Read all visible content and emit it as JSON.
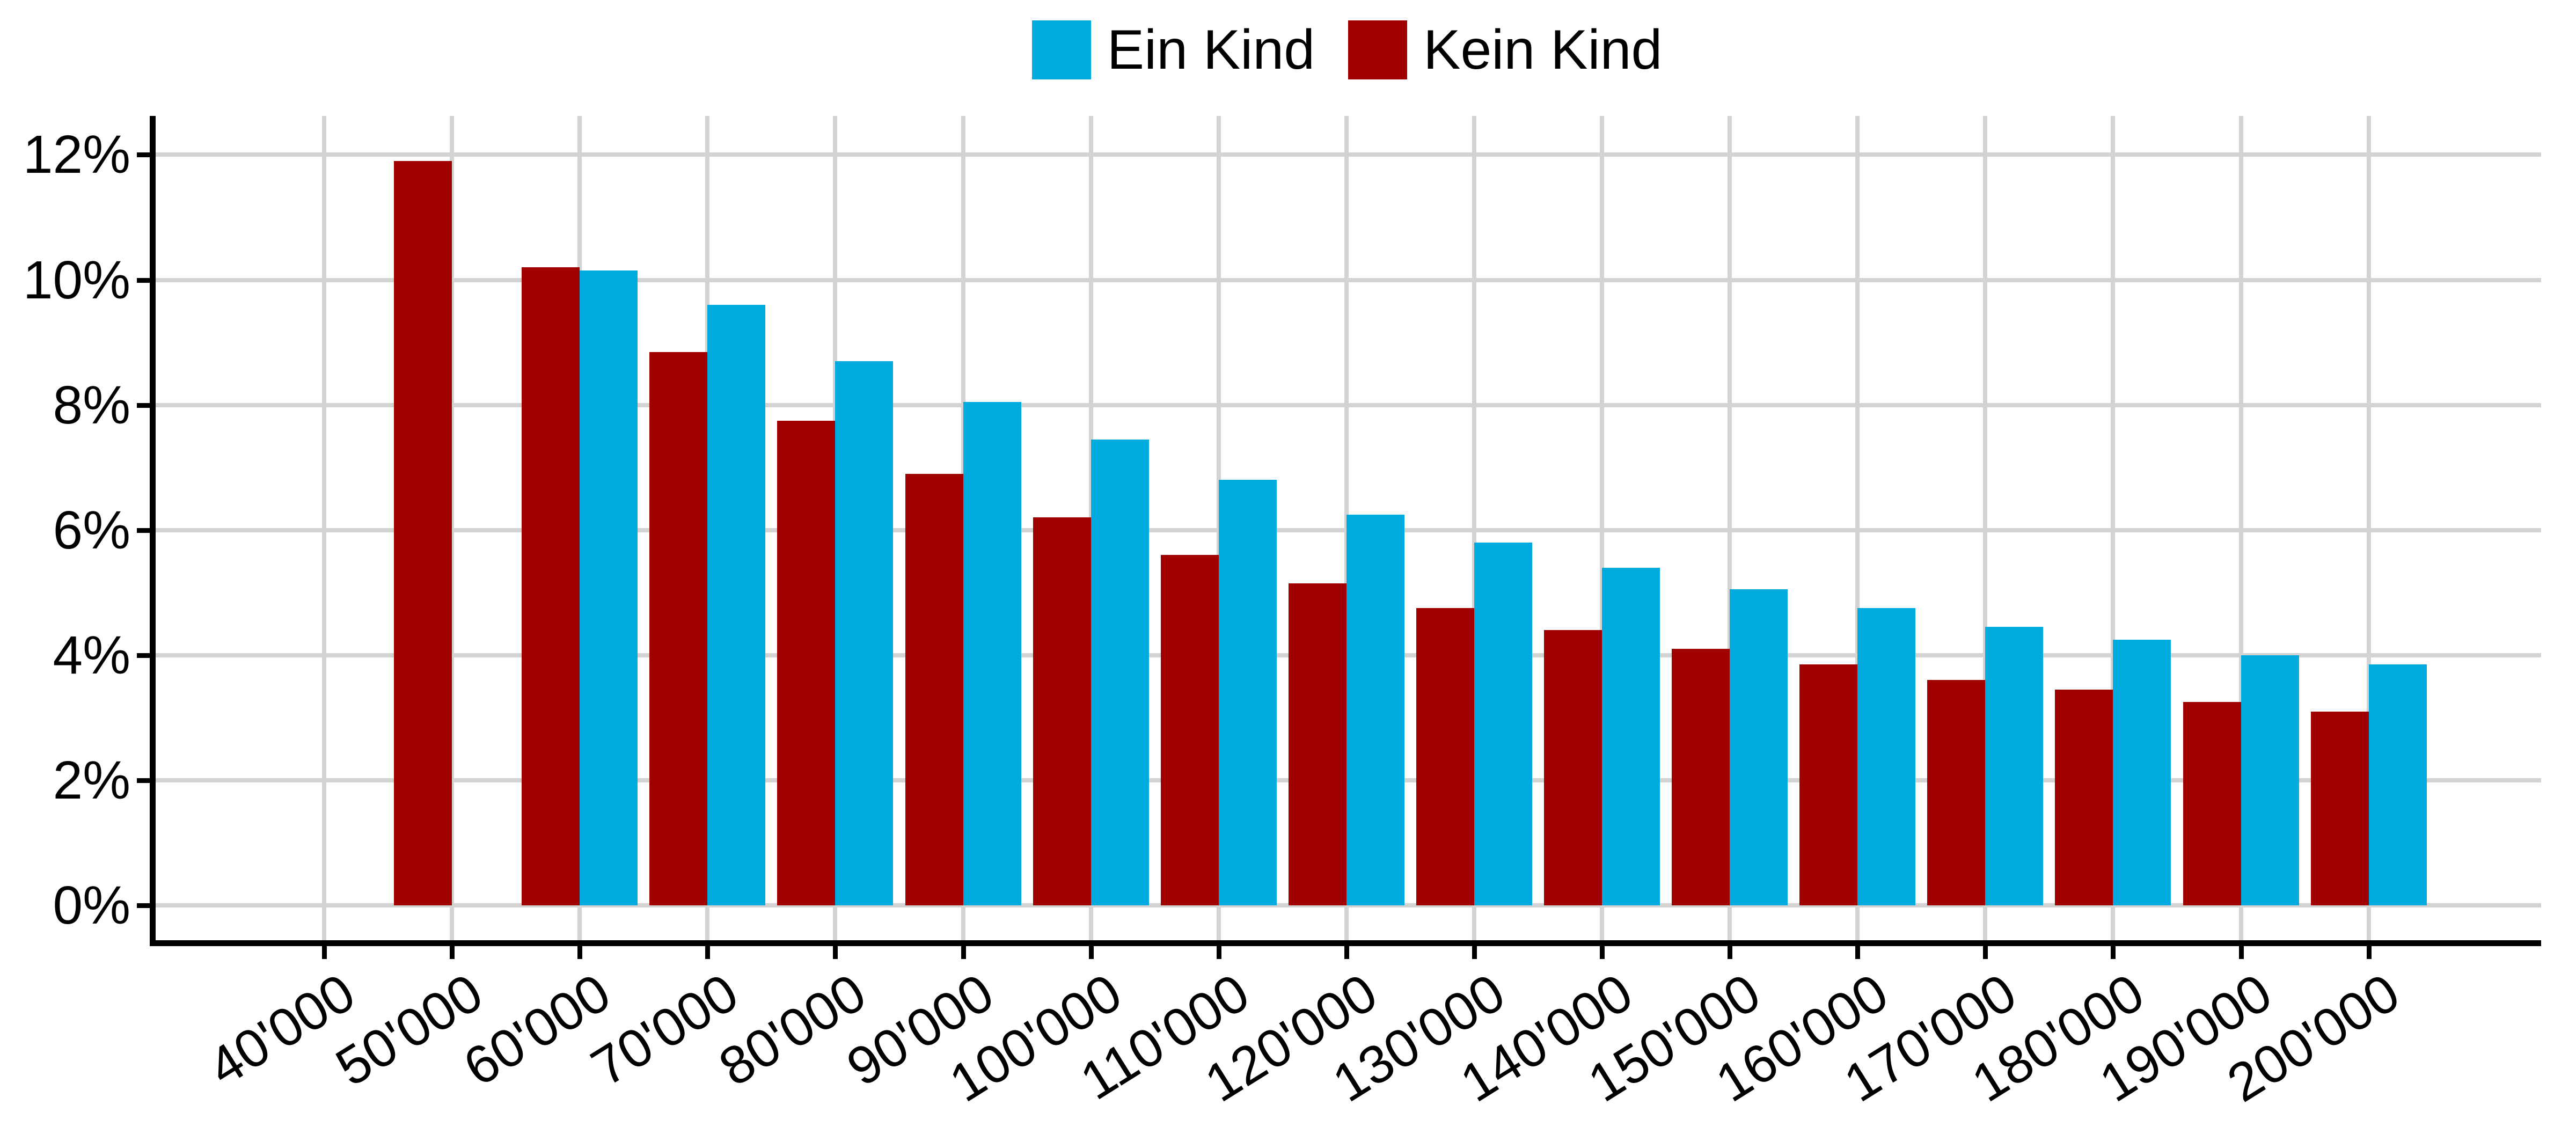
{
  "legend": {
    "items": [
      {
        "label": "Ein Kind",
        "color": "#00A9DE"
      },
      {
        "label": "Kein Kind",
        "color": "#A00000"
      }
    ]
  },
  "chart_data": {
    "type": "bar",
    "title": "",
    "xlabel": "",
    "ylabel": "",
    "legend_position": "top",
    "categories": [
      "40'000",
      "50'000",
      "60'000",
      "70'000",
      "80'000",
      "90'000",
      "100'000",
      "110'000",
      "120'000",
      "130'000",
      "140'000",
      "150'000",
      "160'000",
      "170'000",
      "180'000",
      "190'000",
      "200'000"
    ],
    "series": [
      {
        "name": "Kein Kind",
        "color": "#A00000",
        "dodge": "left",
        "values": [
          null,
          11.9,
          10.2,
          8.85,
          7.75,
          6.9,
          6.2,
          5.6,
          5.15,
          4.75,
          4.4,
          4.1,
          3.85,
          3.6,
          3.45,
          3.25,
          3.1
        ]
      },
      {
        "name": "Ein Kind",
        "color": "#00A9DE",
        "dodge": "right",
        "values": [
          null,
          null,
          10.15,
          9.6,
          8.7,
          8.05,
          7.45,
          6.8,
          6.25,
          5.8,
          5.4,
          5.05,
          4.75,
          4.45,
          4.25,
          4.0,
          3.85
        ]
      }
    ],
    "y_axis": {
      "unit": "%",
      "tick_values": [
        0,
        2,
        4,
        6,
        8,
        10,
        12
      ],
      "tick_labels": [
        "0%",
        "2%",
        "4%",
        "6%",
        "8%",
        "10%",
        "12%"
      ],
      "range_shown": [
        0,
        12.4
      ]
    },
    "x_axis": {
      "tick_label_rotation_deg": -32
    },
    "grid": {
      "horizontal": true,
      "vertical": true,
      "color": "#D3D3D3"
    },
    "colors": {
      "background": "#FFFFFF",
      "axis": "#000000",
      "text": "#000000"
    }
  }
}
